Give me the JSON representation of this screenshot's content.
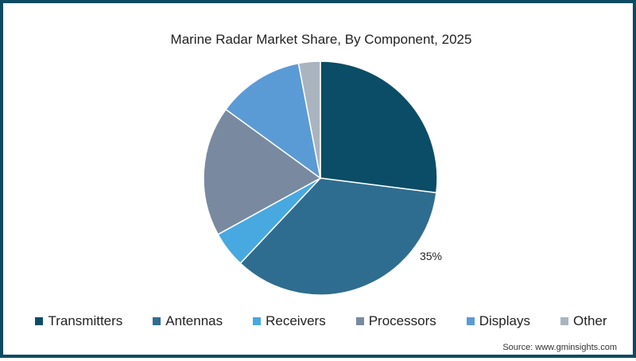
{
  "chart_data": {
    "type": "pie",
    "title": "Marine Radar Market Share, By Component, 2025",
    "categories": [
      "Transmitters",
      "Antennas",
      "Receivers",
      "Processors",
      "Displays",
      "Other"
    ],
    "values": [
      27,
      35,
      5,
      18,
      12,
      3
    ],
    "colors": [
      "#0b4d66",
      "#2f6d90",
      "#48a9e0",
      "#798aa0",
      "#5b9bd5",
      "#a9b4bf"
    ],
    "data_labels": [
      {
        "category": "Antennas",
        "label": "35%"
      }
    ],
    "legend_position": "bottom",
    "start_angle_deg": 0,
    "direction": "clockwise"
  },
  "title": "Marine Radar Market Share, By Component, 2025",
  "legend": [
    {
      "label": "Transmitters",
      "color": "#0b4d66"
    },
    {
      "label": "Antennas",
      "color": "#2f6d90"
    },
    {
      "label": "Receivers",
      "color": "#48a9e0"
    },
    {
      "label": "Processors",
      "color": "#798aa0"
    },
    {
      "label": "Displays",
      "color": "#5b9bd5"
    },
    {
      "label": "Other",
      "color": "#a9b4bf"
    }
  ],
  "source": "Source: www.gminsights.com",
  "frame_color": "#0f4a63"
}
